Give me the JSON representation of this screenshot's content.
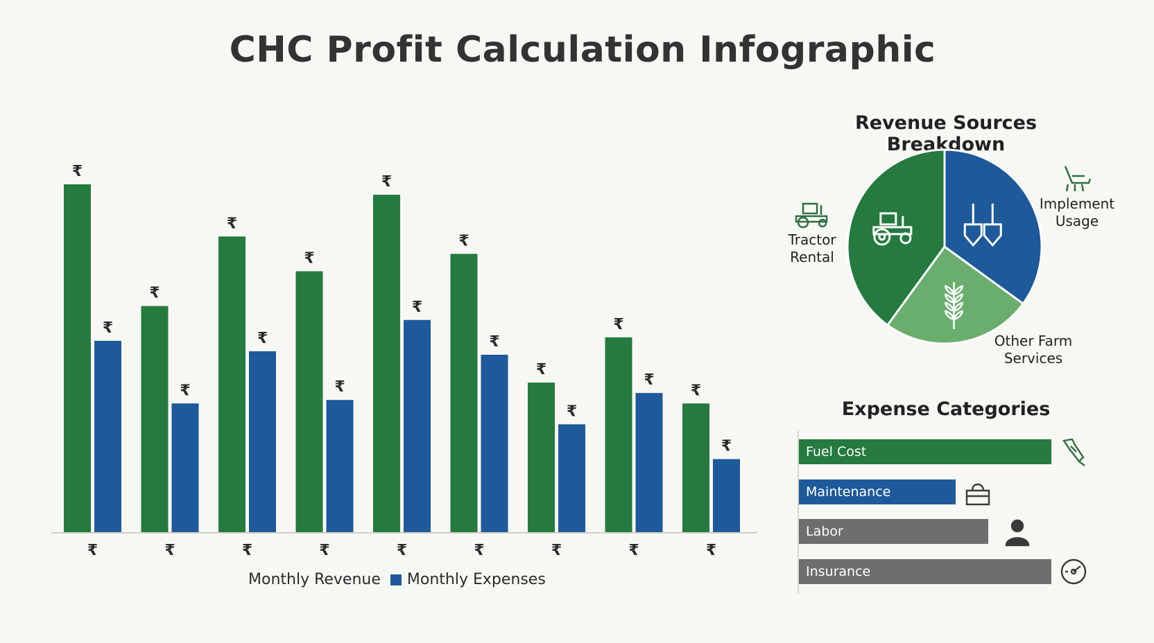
{
  "title": "CHC Profit Calculation Infographic",
  "colors": {
    "revenue": "#247a3f",
    "expenses": "#1e5a99",
    "pie_tractor": "#247a3f",
    "pie_implement": "#1e5a99",
    "pie_other": "#6aae6e",
    "gray": "#6e6e6e",
    "icon_green": "#2f6e43"
  },
  "chart_data": [
    {
      "type": "bar",
      "categories": [
        "₹",
        "₹",
        "₹",
        "₹",
        "₹",
        "₹",
        "₹",
        "₹",
        "₹"
      ],
      "series": [
        {
          "name": "Monthly Revenue",
          "values": [
            100,
            65,
            85,
            75,
            97,
            80,
            43,
            56,
            37
          ],
          "label": "₹"
        },
        {
          "name": "Monthly Expenses",
          "values": [
            55,
            37,
            52,
            38,
            61,
            51,
            31,
            40,
            21
          ],
          "label": "₹"
        }
      ],
      "legend": [
        "Monthly Revenue",
        "Monthly Expenses"
      ],
      "legend_position": "bottom",
      "ylim": [
        0,
        100
      ],
      "grid": false
    },
    {
      "type": "pie",
      "title": "Revenue Sources Breakdown",
      "slices": [
        {
          "label": "Tractor Rental",
          "value": 40,
          "icon": "tractor-icon"
        },
        {
          "label": "Implement Usage",
          "value": 35,
          "icon": "shovels-icon"
        },
        {
          "label": "Other Farm Services",
          "value": 25,
          "icon": "wheat-icon"
        }
      ]
    },
    {
      "type": "bar",
      "orientation": "horizontal",
      "title": "Expense Categories",
      "categories": [
        "Fuel Cost",
        "Maintenance",
        "Labor",
        "Insurance"
      ],
      "values": [
        100,
        62,
        75,
        100
      ],
      "icons": [
        "fuel-nozzle-icon",
        "toolbox-icon",
        "worker-icon",
        "gauge-icon"
      ]
    }
  ],
  "legend": {
    "revenue": "Monthly Revenue",
    "expenses": "Monthly Expenses"
  },
  "pie": {
    "title": "Revenue Sources Breakdown",
    "tractor_line1": "Tractor",
    "tractor_line2": "Rental",
    "implement_line1": "Implement",
    "implement_line2": "Usage",
    "other_line1": "Other Farm",
    "other_line2": "Services"
  },
  "expenses": {
    "title": "Expense Categories",
    "items": [
      {
        "label": "Fuel Cost"
      },
      {
        "label": "Maintenance"
      },
      {
        "label": "Labor"
      },
      {
        "label": "Insurance"
      }
    ]
  }
}
